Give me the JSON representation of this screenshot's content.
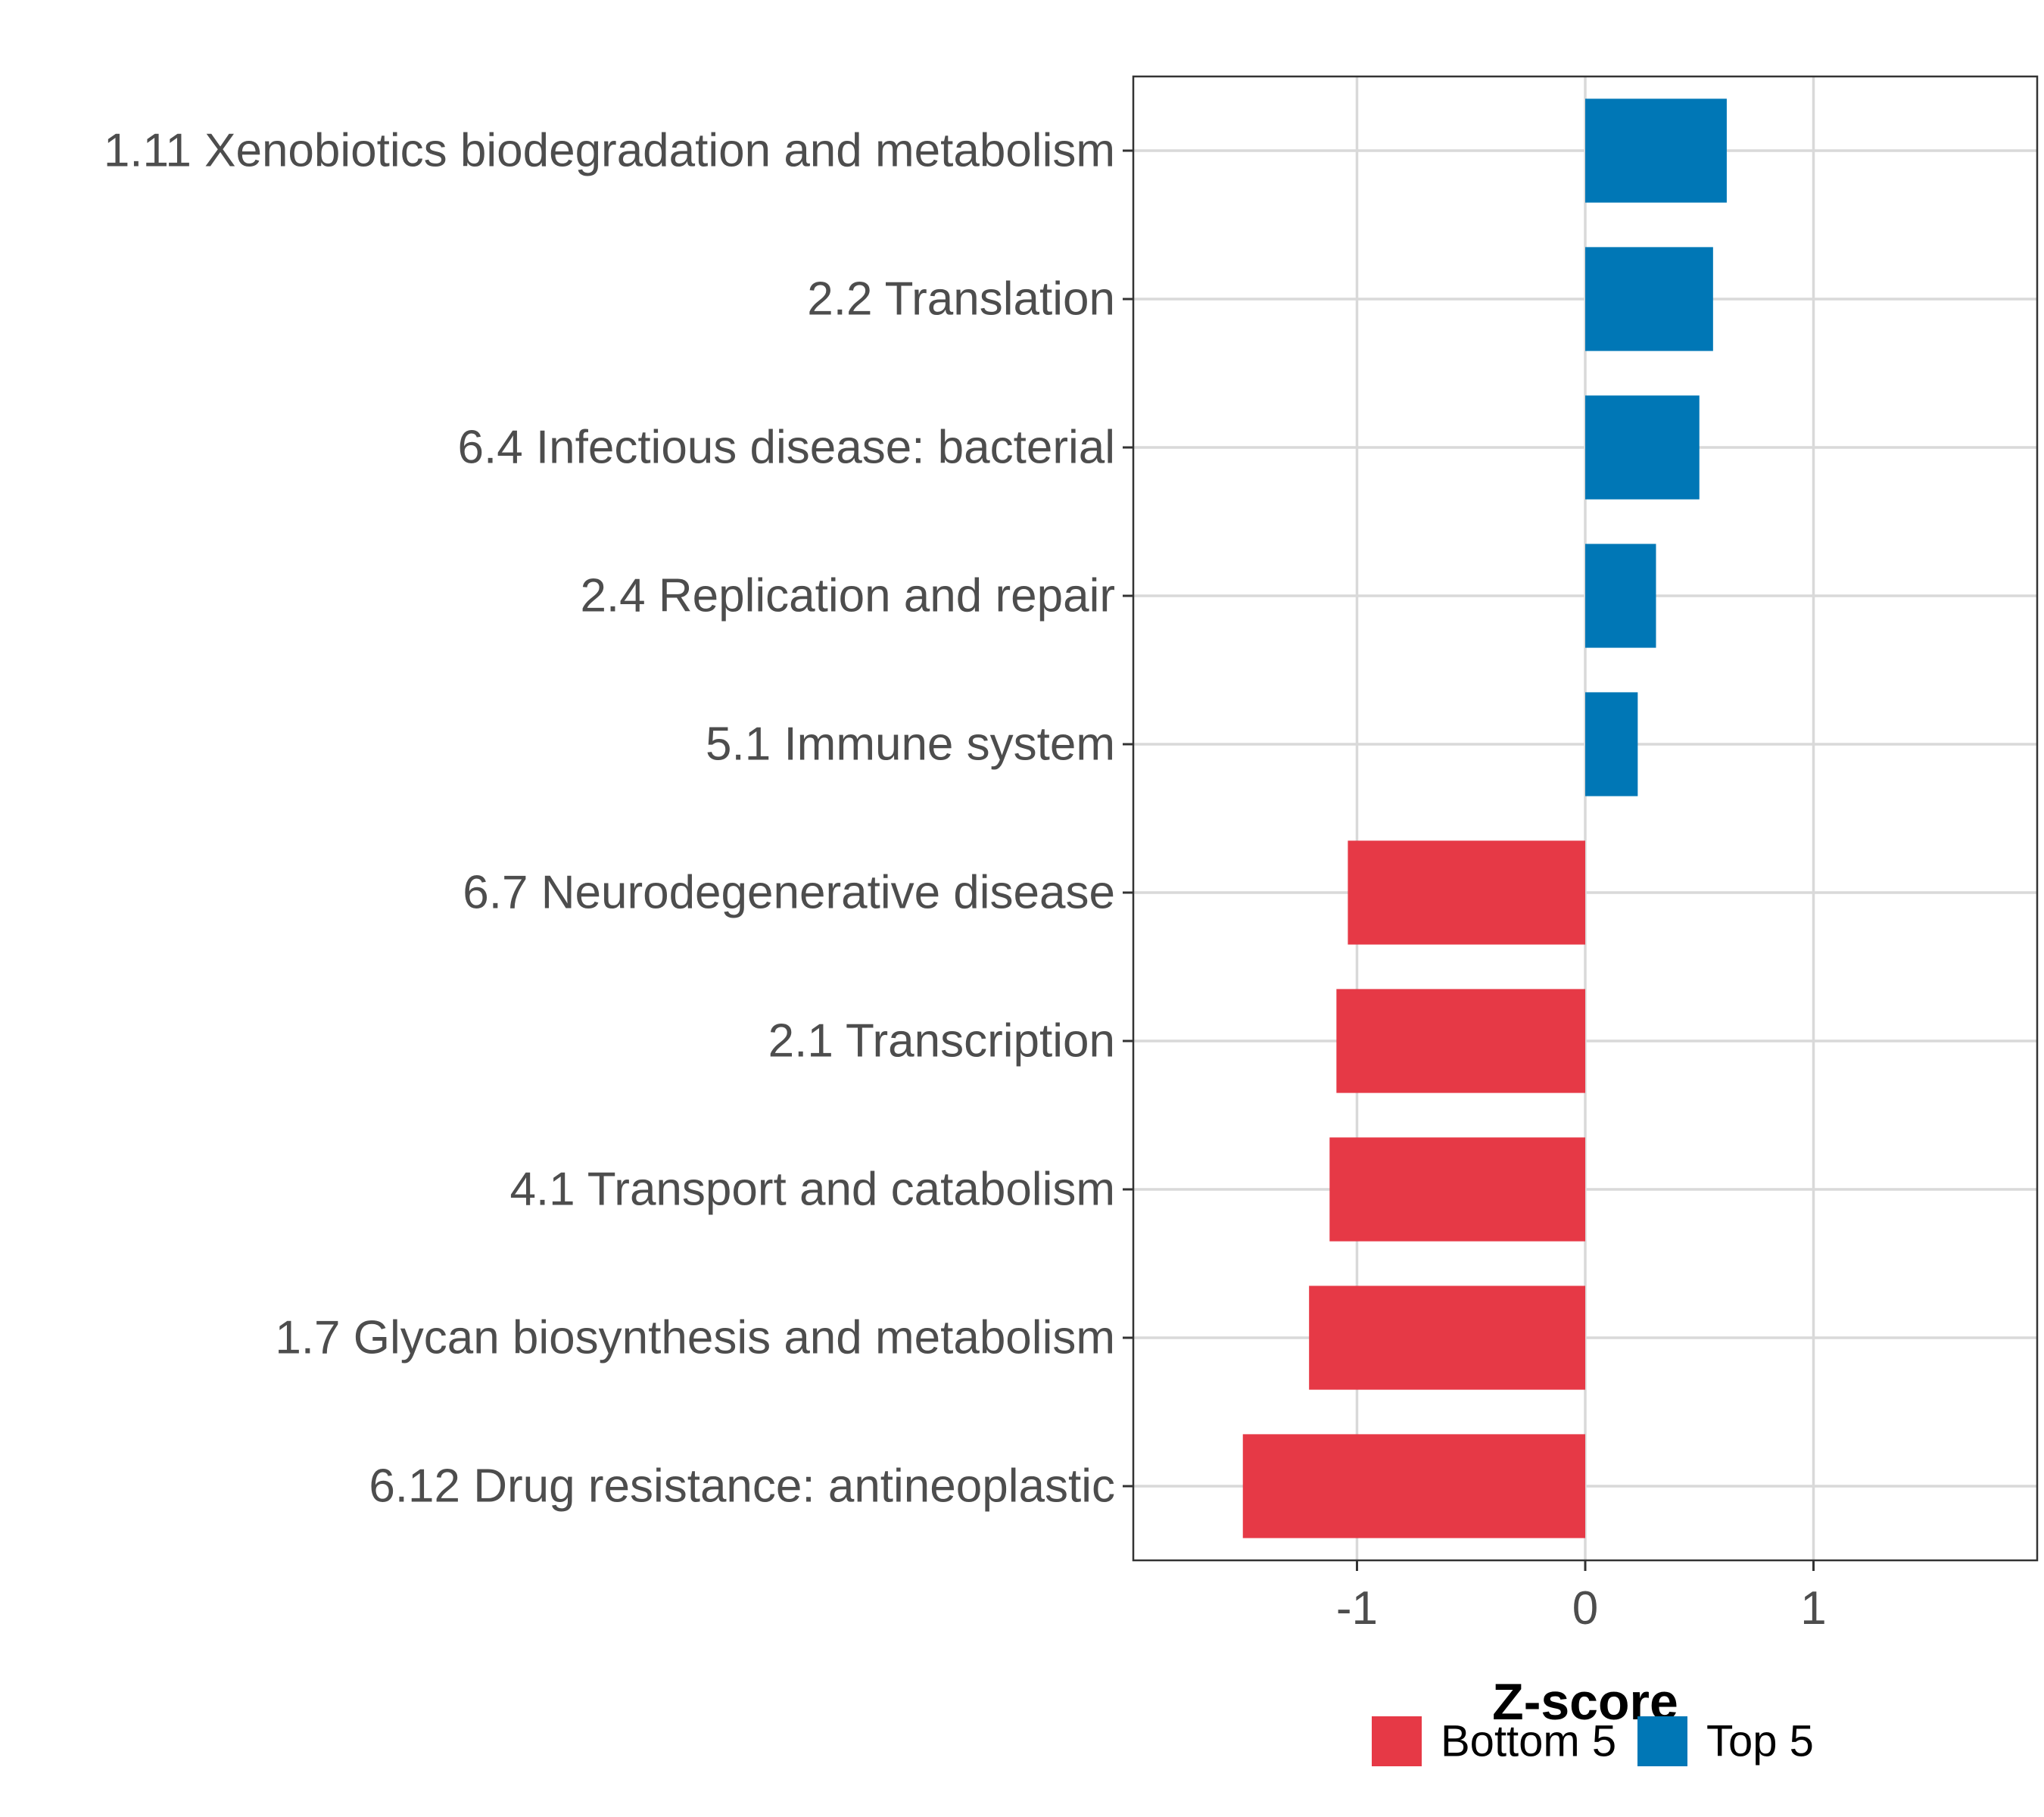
{
  "chart_data": {
    "type": "bar",
    "orientation": "horizontal",
    "title": "",
    "xlabel": "Z-score",
    "ylabel": "",
    "xlim": [
      -1.98,
      1.98
    ],
    "xticks": [
      -1,
      0,
      1
    ],
    "xtick_labels": [
      "-1",
      "0",
      "1"
    ],
    "grid": true,
    "legend_position": "bottom",
    "categories": [
      "1.11 Xenobiotics biodegradation and metabolism",
      "2.2 Translation",
      "6.4 Infectious disease: bacterial",
      "2.4 Replication and repair",
      "5.1 Immune system",
      "6.7 Neurodegenerative disease",
      "2.1 Transcription",
      "4.1 Transport and catabolism",
      "1.7 Glycan biosynthesis and metabolism",
      "6.12 Drug resistance: antineoplastic"
    ],
    "values": [
      0.62,
      0.56,
      0.5,
      0.31,
      0.23,
      -1.04,
      -1.09,
      -1.12,
      -1.21,
      -1.5
    ],
    "groups": [
      "Top 5",
      "Top 5",
      "Top 5",
      "Top 5",
      "Top 5",
      "Bottom 5",
      "Bottom 5",
      "Bottom 5",
      "Bottom 5",
      "Bottom 5"
    ],
    "legend": [
      {
        "name": "Bottom 5",
        "color": "#e63946"
      },
      {
        "name": "Top 5",
        "color": "#0077b6"
      }
    ]
  }
}
